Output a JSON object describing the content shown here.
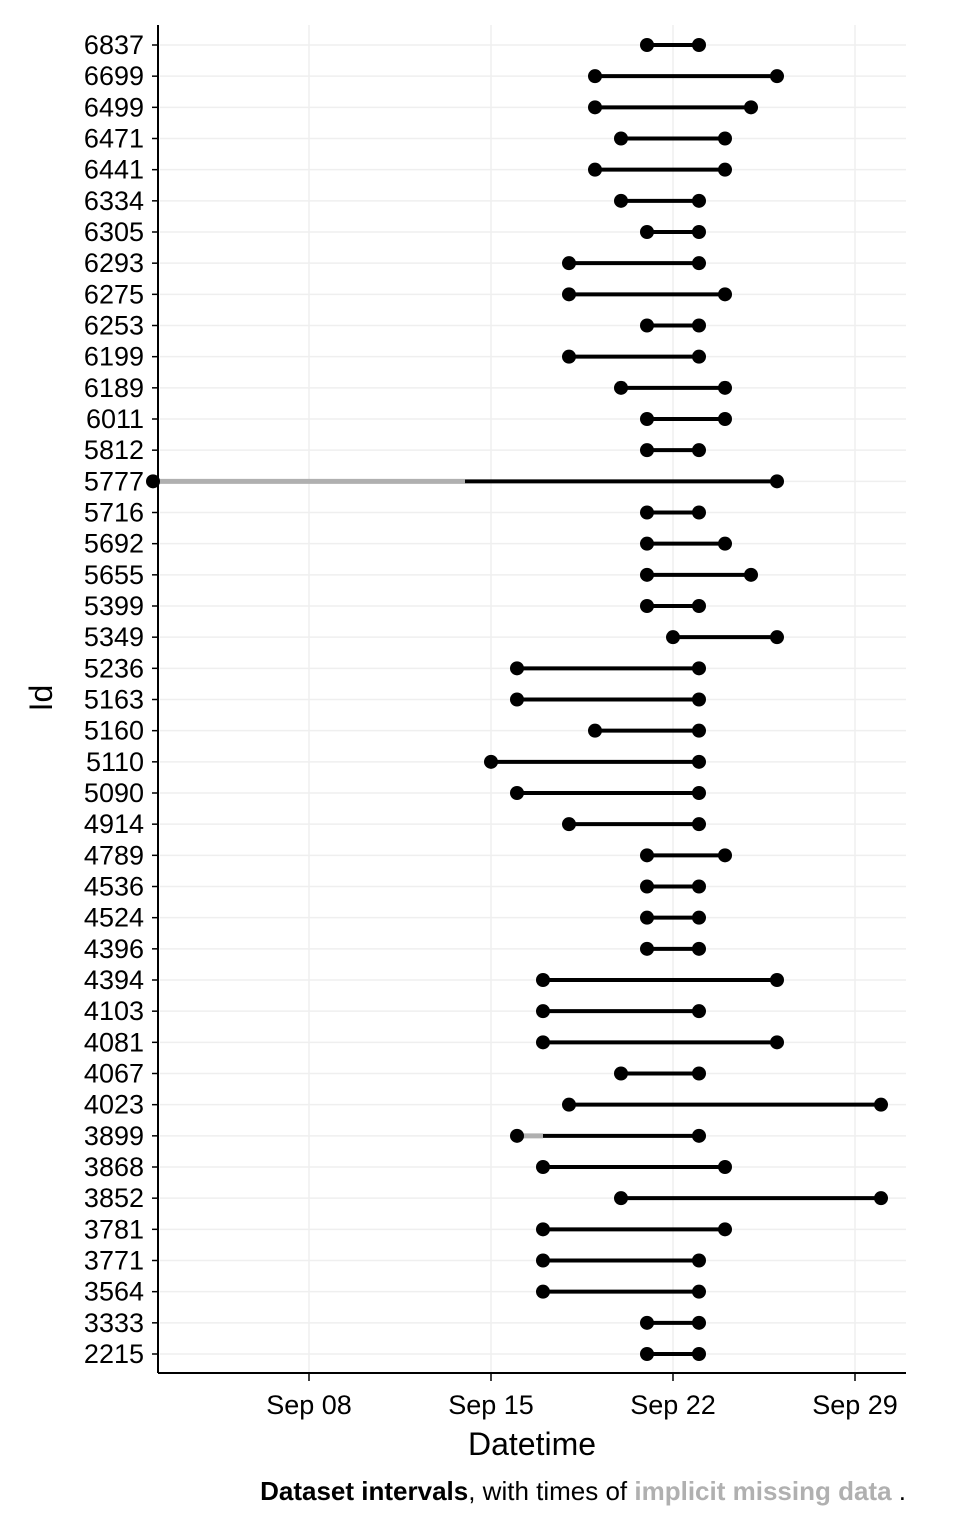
{
  "chart_data": {
    "type": "dumbbell",
    "xlabel": "Datetime",
    "ylabel": "Id",
    "x_ticks": [
      "Sep 08",
      "Sep 15",
      "Sep 22",
      "Sep 29"
    ],
    "xlim": [
      "2015-09-01",
      "2015-09-30"
    ],
    "grid": true,
    "colors": {
      "observed": "#000000",
      "missing": "#b0b0b0"
    },
    "rows": [
      {
        "id": "6837",
        "start": "2015-09-21",
        "end": "2015-09-23"
      },
      {
        "id": "6699",
        "start": "2015-09-19",
        "end": "2015-09-26"
      },
      {
        "id": "6499",
        "start": "2015-09-19",
        "end": "2015-09-25"
      },
      {
        "id": "6471",
        "start": "2015-09-20",
        "end": "2015-09-24"
      },
      {
        "id": "6441",
        "start": "2015-09-19",
        "end": "2015-09-24"
      },
      {
        "id": "6334",
        "start": "2015-09-20",
        "end": "2015-09-23"
      },
      {
        "id": "6305",
        "start": "2015-09-21",
        "end": "2015-09-23"
      },
      {
        "id": "6293",
        "start": "2015-09-18",
        "end": "2015-09-23"
      },
      {
        "id": "6275",
        "start": "2015-09-18",
        "end": "2015-09-24"
      },
      {
        "id": "6253",
        "start": "2015-09-21",
        "end": "2015-09-23"
      },
      {
        "id": "6199",
        "start": "2015-09-18",
        "end": "2015-09-23"
      },
      {
        "id": "6189",
        "start": "2015-09-20",
        "end": "2015-09-24"
      },
      {
        "id": "6011",
        "start": "2015-09-21",
        "end": "2015-09-24"
      },
      {
        "id": "5812",
        "start": "2015-09-21",
        "end": "2015-09-23"
      },
      {
        "id": "5777",
        "start": "2015-09-02",
        "end": "2015-09-26",
        "missing_end": "2015-09-14"
      },
      {
        "id": "5716",
        "start": "2015-09-21",
        "end": "2015-09-23"
      },
      {
        "id": "5692",
        "start": "2015-09-21",
        "end": "2015-09-24"
      },
      {
        "id": "5655",
        "start": "2015-09-21",
        "end": "2015-09-25"
      },
      {
        "id": "5399",
        "start": "2015-09-21",
        "end": "2015-09-23"
      },
      {
        "id": "5349",
        "start": "2015-09-22",
        "end": "2015-09-26"
      },
      {
        "id": "5236",
        "start": "2015-09-16",
        "end": "2015-09-23"
      },
      {
        "id": "5163",
        "start": "2015-09-16",
        "end": "2015-09-23"
      },
      {
        "id": "5160",
        "start": "2015-09-19",
        "end": "2015-09-23"
      },
      {
        "id": "5110",
        "start": "2015-09-15",
        "end": "2015-09-23"
      },
      {
        "id": "5090",
        "start": "2015-09-16",
        "end": "2015-09-23"
      },
      {
        "id": "4914",
        "start": "2015-09-18",
        "end": "2015-09-23"
      },
      {
        "id": "4789",
        "start": "2015-09-21",
        "end": "2015-09-24"
      },
      {
        "id": "4536",
        "start": "2015-09-21",
        "end": "2015-09-23"
      },
      {
        "id": "4524",
        "start": "2015-09-21",
        "end": "2015-09-23"
      },
      {
        "id": "4396",
        "start": "2015-09-21",
        "end": "2015-09-23"
      },
      {
        "id": "4394",
        "start": "2015-09-17",
        "end": "2015-09-26"
      },
      {
        "id": "4103",
        "start": "2015-09-17",
        "end": "2015-09-23"
      },
      {
        "id": "4081",
        "start": "2015-09-17",
        "end": "2015-09-26"
      },
      {
        "id": "4067",
        "start": "2015-09-20",
        "end": "2015-09-23"
      },
      {
        "id": "4023",
        "start": "2015-09-18",
        "end": "2015-09-30"
      },
      {
        "id": "3899",
        "start": "2015-09-16",
        "end": "2015-09-23",
        "missing_end": "2015-09-17"
      },
      {
        "id": "3868",
        "start": "2015-09-17",
        "end": "2015-09-24"
      },
      {
        "id": "3852",
        "start": "2015-09-20",
        "end": "2015-09-30"
      },
      {
        "id": "3781",
        "start": "2015-09-17",
        "end": "2015-09-24"
      },
      {
        "id": "3771",
        "start": "2015-09-17",
        "end": "2015-09-23"
      },
      {
        "id": "3564",
        "start": "2015-09-17",
        "end": "2015-09-23"
      },
      {
        "id": "3333",
        "start": "2015-09-21",
        "end": "2015-09-23"
      },
      {
        "id": "2215",
        "start": "2015-09-21",
        "end": "2015-09-23"
      }
    ]
  },
  "caption": {
    "bold_text": "Dataset intervals",
    "middle_text": ", with times of ",
    "missing_text": "implicit missing data",
    "end_text": " ."
  }
}
